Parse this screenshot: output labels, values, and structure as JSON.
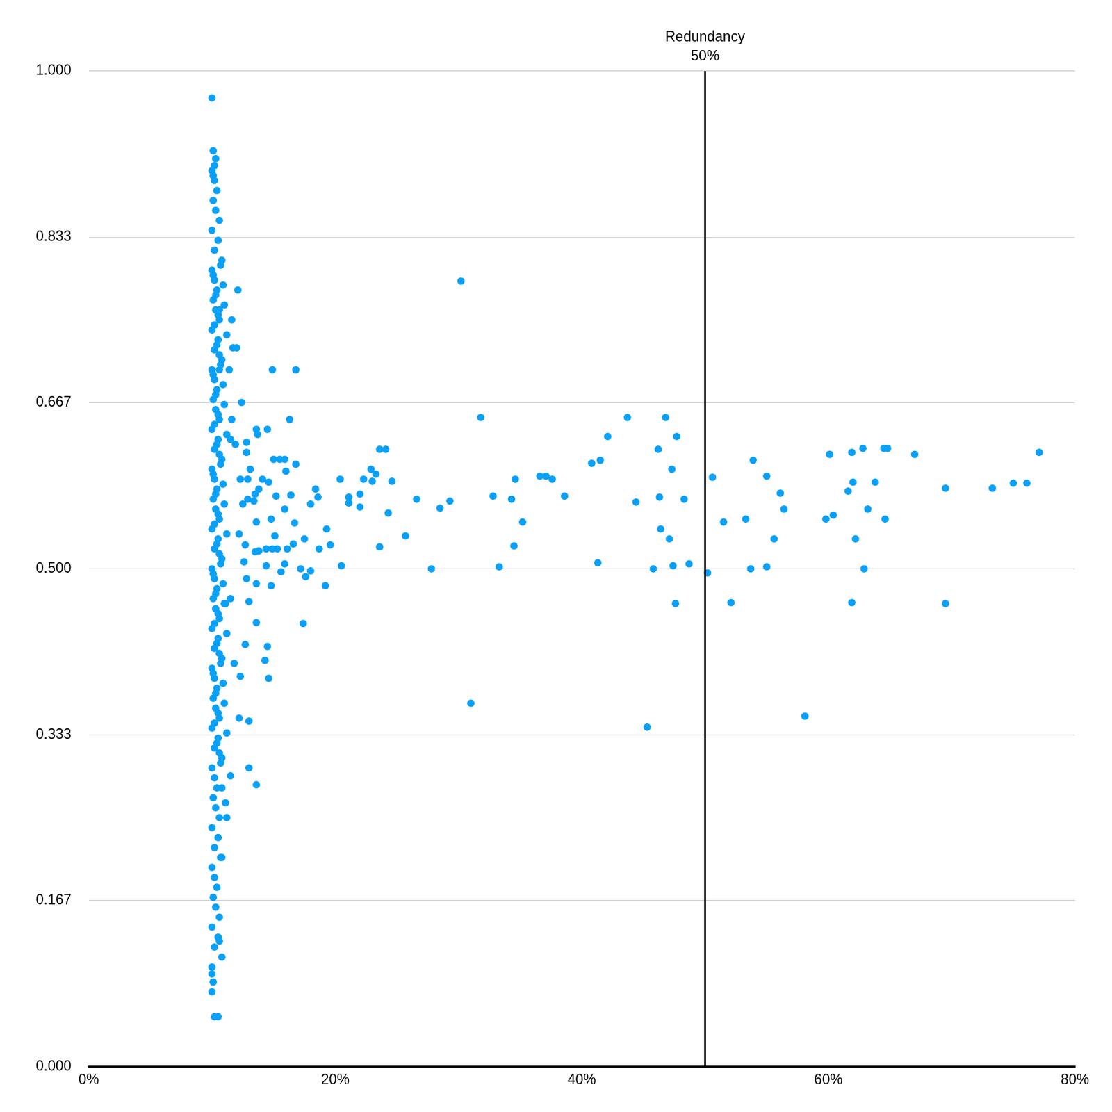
{
  "chart_data": {
    "type": "scatter",
    "color": "#0aa0f6",
    "marker": "circle",
    "grid": "y",
    "xlim": [
      0,
      80
    ],
    "xticks": [
      {
        "value": 0,
        "label": "0%"
      },
      {
        "value": 20,
        "label": "20%"
      },
      {
        "value": 40,
        "label": "40%"
      },
      {
        "value": 60,
        "label": "60%"
      },
      {
        "value": 80,
        "label": "80%"
      }
    ],
    "ylim": [
      0,
      1
    ],
    "yticks": [
      {
        "value": 0,
        "label": "0.000"
      },
      0.167,
      0.333,
      {
        "value": 0.5,
        "label": "0.500"
      },
      0.667,
      0.833,
      {
        "value": 1,
        "label": "1.000"
      }
    ],
    "annotations": [
      {
        "x": 50,
        "label": "Redundancy",
        "value_label": "50%"
      }
    ],
    "x": [
      10.0,
      10.2,
      10.4,
      10.1,
      10.3,
      10.6,
      10.0,
      10.5,
      10.2,
      10.8,
      10.0,
      10.2,
      10.4,
      10.1,
      10.3,
      10.6,
      10.0,
      10.5,
      10.2,
      10.8,
      10.0,
      10.2,
      10.4,
      10.1,
      10.3,
      10.6,
      10.0,
      10.5,
      10.2,
      10.8,
      10.0,
      10.2,
      10.4,
      10.1,
      10.3,
      10.6,
      10.0,
      10.5,
      10.2,
      10.8,
      10.0,
      10.2,
      10.4,
      10.1,
      10.3,
      10.6,
      10.0,
      10.5,
      10.2,
      10.8,
      10.0,
      10.2,
      10.4,
      10.1,
      10.3,
      10.6,
      10.0,
      10.5,
      10.2,
      10.8,
      10.0,
      10.2,
      10.4,
      10.1,
      10.3,
      10.6,
      10.0,
      10.5,
      10.2,
      10.8,
      10.0,
      10.2,
      10.4,
      10.1,
      10.3,
      10.6,
      10.0,
      10.5,
      10.2,
      10.8,
      10.0,
      10.7,
      10.1,
      10.9,
      10.3,
      11.0,
      10.5,
      10.2,
      11.2,
      10.4,
      10.6,
      10.7,
      10.1,
      10.9,
      10.3,
      11.0,
      10.5,
      10.2,
      11.2,
      10.4,
      10.6,
      10.7,
      10.1,
      10.9,
      10.3,
      11.0,
      10.5,
      10.2,
      11.2,
      10.4,
      10.6,
      10.7,
      10.1,
      10.9,
      10.3,
      11.0,
      10.5,
      10.2,
      11.2,
      10.4,
      10.6,
      10.7,
      10.1,
      10.9,
      10.3,
      11.0,
      10.5,
      10.2,
      11.2,
      10.4,
      10.6,
      10.7,
      12.1,
      11.6,
      10.6,
      11.7,
      12.0,
      11.4,
      10.6,
      14.9,
      16.8,
      12.4,
      16.3,
      11.6,
      13.6,
      13.7,
      14.5,
      11.5,
      12.8,
      15.0,
      15.5,
      15.9,
      16.8,
      12.8,
      11.9,
      13.1,
      16.0,
      12.3,
      12.9,
      14.1,
      14.6,
      13.5,
      13.8,
      15.2,
      16.4,
      12.5,
      12.9,
      13.4,
      15.9,
      18.0,
      18.4,
      18.6,
      14.8,
      16.7,
      13.6,
      12.2,
      15.1,
      17.5,
      19.3,
      19.6,
      12.7,
      13.8,
      14.4,
      14.9,
      15.3,
      16.1,
      16.6,
      18.7,
      13.5,
      12.6,
      14.4,
      15.9,
      17.2,
      18.0,
      20.5,
      15.6,
      17.6,
      12.8,
      13.6,
      14.8,
      19.2,
      11.1,
      11.5,
      13.0,
      13.6,
      17.4,
      12.7,
      14.5,
      14.3,
      14.6,
      12.3,
      11.8,
      12.2,
      13.0,
      13.0,
      13.6,
      11.5,
      11.1,
      11.2,
      10.8,
      10.7,
      20.4,
      21.1,
      21.1,
      22.0,
      22.0,
      22.3,
      22.9,
      23.0,
      23.3,
      23.6,
      24.1,
      23.6,
      24.3,
      24.6,
      25.7,
      26.6,
      27.8,
      28.5,
      29.3,
      30.2,
      31.0,
      31.8,
      32.8,
      33.3,
      34.3,
      34.5,
      34.6,
      35.2,
      36.6,
      37.1,
      37.6,
      38.6,
      40.8,
      41.3,
      41.5,
      42.1,
      43.7,
      44.4,
      45.3,
      45.8,
      46.3,
      46.2,
      46.4,
      46.8,
      47.1,
      47.3,
      47.4,
      47.6,
      47.7,
      48.3,
      48.7,
      50.2,
      50.6,
      51.5,
      52.1,
      53.3,
      53.7,
      53.9,
      55.0,
      55.0,
      55.6,
      56.1,
      56.4,
      58.1,
      59.8,
      60.1,
      60.4,
      61.6,
      61.9,
      61.9,
      62.0,
      62.2,
      62.8,
      62.9,
      63.2,
      63.8,
      64.5,
      64.8,
      64.6,
      67.0,
      69.5,
      69.5,
      73.3,
      75.0,
      76.1,
      77.1,
      10.0,
      10.1,
      10.3,
      10.2,
      10.1,
      10.0,
      10.0,
      10.1,
      10.2,
      10.5,
      10.6
    ],
    "values": [
      0.9,
      0.89,
      0.88,
      0.87,
      0.86,
      0.85,
      0.84,
      0.83,
      0.82,
      0.81,
      0.8,
      0.79,
      0.78,
      0.77,
      0.76,
      0.75,
      0.74,
      0.73,
      0.72,
      0.71,
      0.7,
      0.69,
      0.68,
      0.67,
      0.66,
      0.65,
      0.64,
      0.63,
      0.62,
      0.61,
      0.6,
      0.59,
      0.58,
      0.57,
      0.56,
      0.55,
      0.54,
      0.53,
      0.52,
      0.51,
      0.5,
      0.49,
      0.48,
      0.47,
      0.46,
      0.45,
      0.44,
      0.43,
      0.42,
      0.41,
      0.4,
      0.39,
      0.38,
      0.37,
      0.36,
      0.35,
      0.34,
      0.33,
      0.32,
      0.31,
      0.3,
      0.29,
      0.28,
      0.27,
      0.26,
      0.25,
      0.24,
      0.23,
      0.22,
      0.21,
      0.2,
      0.19,
      0.18,
      0.17,
      0.16,
      0.15,
      0.14,
      0.13,
      0.12,
      0.11,
      0.1,
      0.805,
      0.795,
      0.785,
      0.775,
      0.765,
      0.755,
      0.745,
      0.735,
      0.725,
      0.715,
      0.705,
      0.695,
      0.685,
      0.675,
      0.665,
      0.655,
      0.645,
      0.635,
      0.625,
      0.615,
      0.605,
      0.595,
      0.585,
      0.575,
      0.565,
      0.555,
      0.545,
      0.535,
      0.525,
      0.515,
      0.505,
      0.495,
      0.485,
      0.475,
      0.465,
      0.455,
      0.445,
      0.435,
      0.425,
      0.415,
      0.405,
      0.395,
      0.385,
      0.375,
      0.365,
      0.355,
      0.345,
      0.335,
      0.325,
      0.315,
      0.305,
      0.78,
      0.75,
      0.76,
      0.722,
      0.722,
      0.7,
      0.7,
      0.7,
      0.7,
      0.667,
      0.65,
      0.65,
      0.64,
      0.635,
      0.64,
      0.63,
      0.627,
      0.61,
      0.61,
      0.61,
      0.605,
      0.617,
      0.625,
      0.6,
      0.598,
      0.59,
      0.59,
      0.59,
      0.587,
      0.575,
      0.58,
      0.573,
      0.574,
      0.565,
      0.57,
      0.568,
      0.56,
      0.565,
      0.58,
      0.572,
      0.55,
      0.546,
      0.547,
      0.535,
      0.533,
      0.53,
      0.54,
      0.524,
      0.524,
      0.518,
      0.52,
      0.52,
      0.52,
      0.52,
      0.525,
      0.52,
      0.517,
      0.507,
      0.503,
      0.505,
      0.5,
      0.498,
      0.503,
      0.497,
      0.492,
      0.49,
      0.485,
      0.483,
      0.483,
      0.465,
      0.47,
      0.467,
      0.446,
      0.445,
      0.424,
      0.422,
      0.408,
      0.39,
      0.392,
      0.405,
      0.35,
      0.347,
      0.3,
      0.283,
      0.292,
      0.265,
      0.25,
      0.28,
      0.21,
      0.59,
      0.572,
      0.566,
      0.575,
      0.562,
      0.59,
      0.6,
      0.588,
      0.595,
      0.62,
      0.62,
      0.522,
      0.556,
      0.588,
      0.533,
      0.57,
      0.5,
      0.561,
      0.568,
      0.789,
      0.365,
      0.652,
      0.573,
      0.502,
      0.57,
      0.523,
      0.59,
      0.547,
      0.593,
      0.593,
      0.59,
      0.573,
      0.606,
      0.506,
      0.609,
      0.633,
      0.652,
      0.567,
      0.341,
      0.5,
      0.572,
      0.62,
      0.54,
      0.652,
      0.53,
      0.6,
      0.503,
      0.465,
      0.633,
      0.57,
      0.505,
      0.496,
      0.592,
      0.547,
      0.466,
      0.55,
      0.5,
      0.609,
      0.593,
      0.502,
      0.53,
      0.576,
      0.56,
      0.352,
      0.55,
      0.615,
      0.554,
      0.578,
      0.466,
      0.617,
      0.587,
      0.53,
      0.621,
      0.5,
      0.56,
      0.587,
      0.621,
      0.621,
      0.55,
      0.615,
      0.581,
      0.465,
      0.581,
      0.586,
      0.586,
      0.617,
      0.973,
      0.92,
      0.912,
      0.905,
      0.895,
      0.093,
      0.075,
      0.085,
      0.05,
      0.05,
      0.126
    ]
  }
}
